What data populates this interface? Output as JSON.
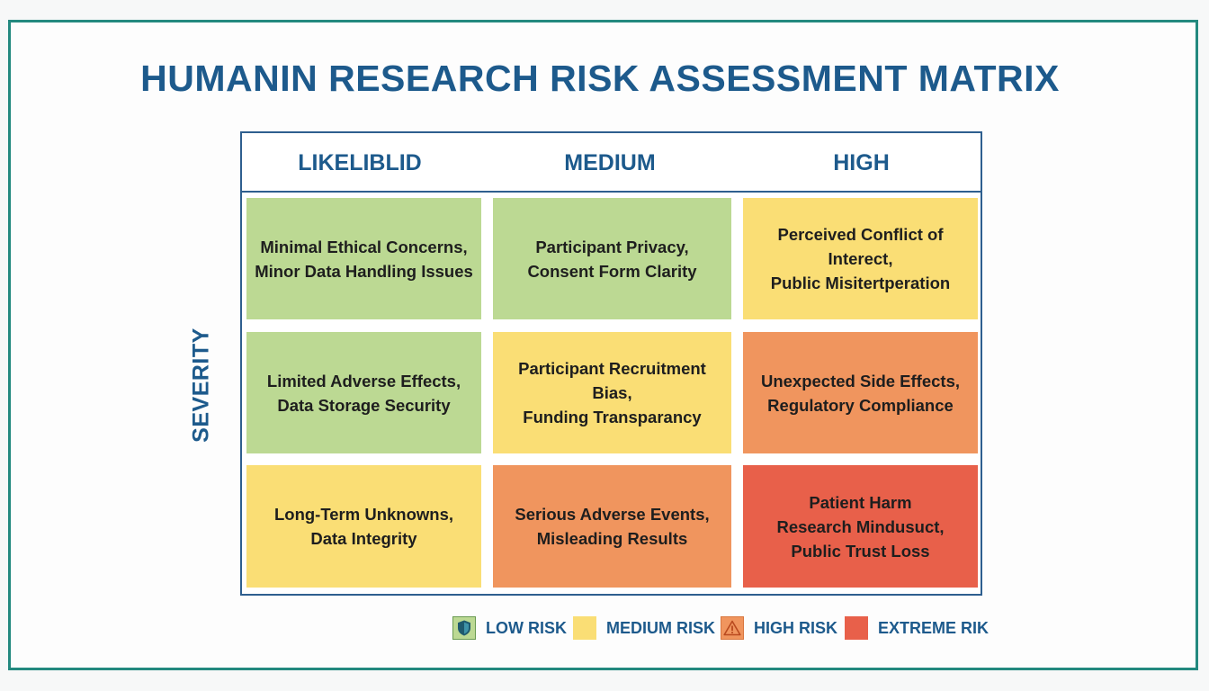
{
  "title": "HUMANIN RESEARCH RISK ASSESSMENT MATRIX",
  "axis_label": "SEVERITY",
  "columns": [
    "LIKELIBLID",
    "MEDIUM",
    "HIGH"
  ],
  "cells": [
    [
      {
        "text": "Minimal Ethical Concerns,\nMinor Data Handling Issues",
        "color": "#bcd993"
      },
      {
        "text": "Participant Privacy,\nConsent Form Clarity",
        "color": "#bcd993"
      },
      {
        "text": "Perceived Conflict of Interect,\nPublic Misitertperation",
        "color": "#fade75"
      }
    ],
    [
      {
        "text": "Limited Adverse Effects,\nData Storage Security",
        "color": "#bcd993"
      },
      {
        "text": "Participant Recruitment Bias,\nFunding Transparancy",
        "color": "#fade75"
      },
      {
        "text": "Unexpected Side Effects,\nRegulatory Compliance",
        "color": "#f0955e"
      }
    ],
    [
      {
        "text": "Long-Term Unknowns,\nData Integrity",
        "color": "#fade75"
      },
      {
        "text": "Serious Adverse Events,\nMisleading Results",
        "color": "#f0955e"
      },
      {
        "text": "Patient Harm\nResearch Mindusuct,\nPublic Trust Loss",
        "color": "#e8604a"
      }
    ]
  ],
  "legend": [
    {
      "label": "LOW RISK",
      "color": "#bcd993",
      "icon": "shield-icon"
    },
    {
      "label": "MEDIUM RISK",
      "color": "#fade75",
      "icon": ""
    },
    {
      "label": "HIGH RISK",
      "color": "#f0955e",
      "icon": "warning-icon"
    },
    {
      "label": "EXTREME RIK",
      "color": "#e8604a",
      "icon": ""
    }
  ],
  "colors": {
    "frame": "#23897f",
    "heading": "#1d5a8c",
    "grid_border": "#2e5f8f"
  }
}
